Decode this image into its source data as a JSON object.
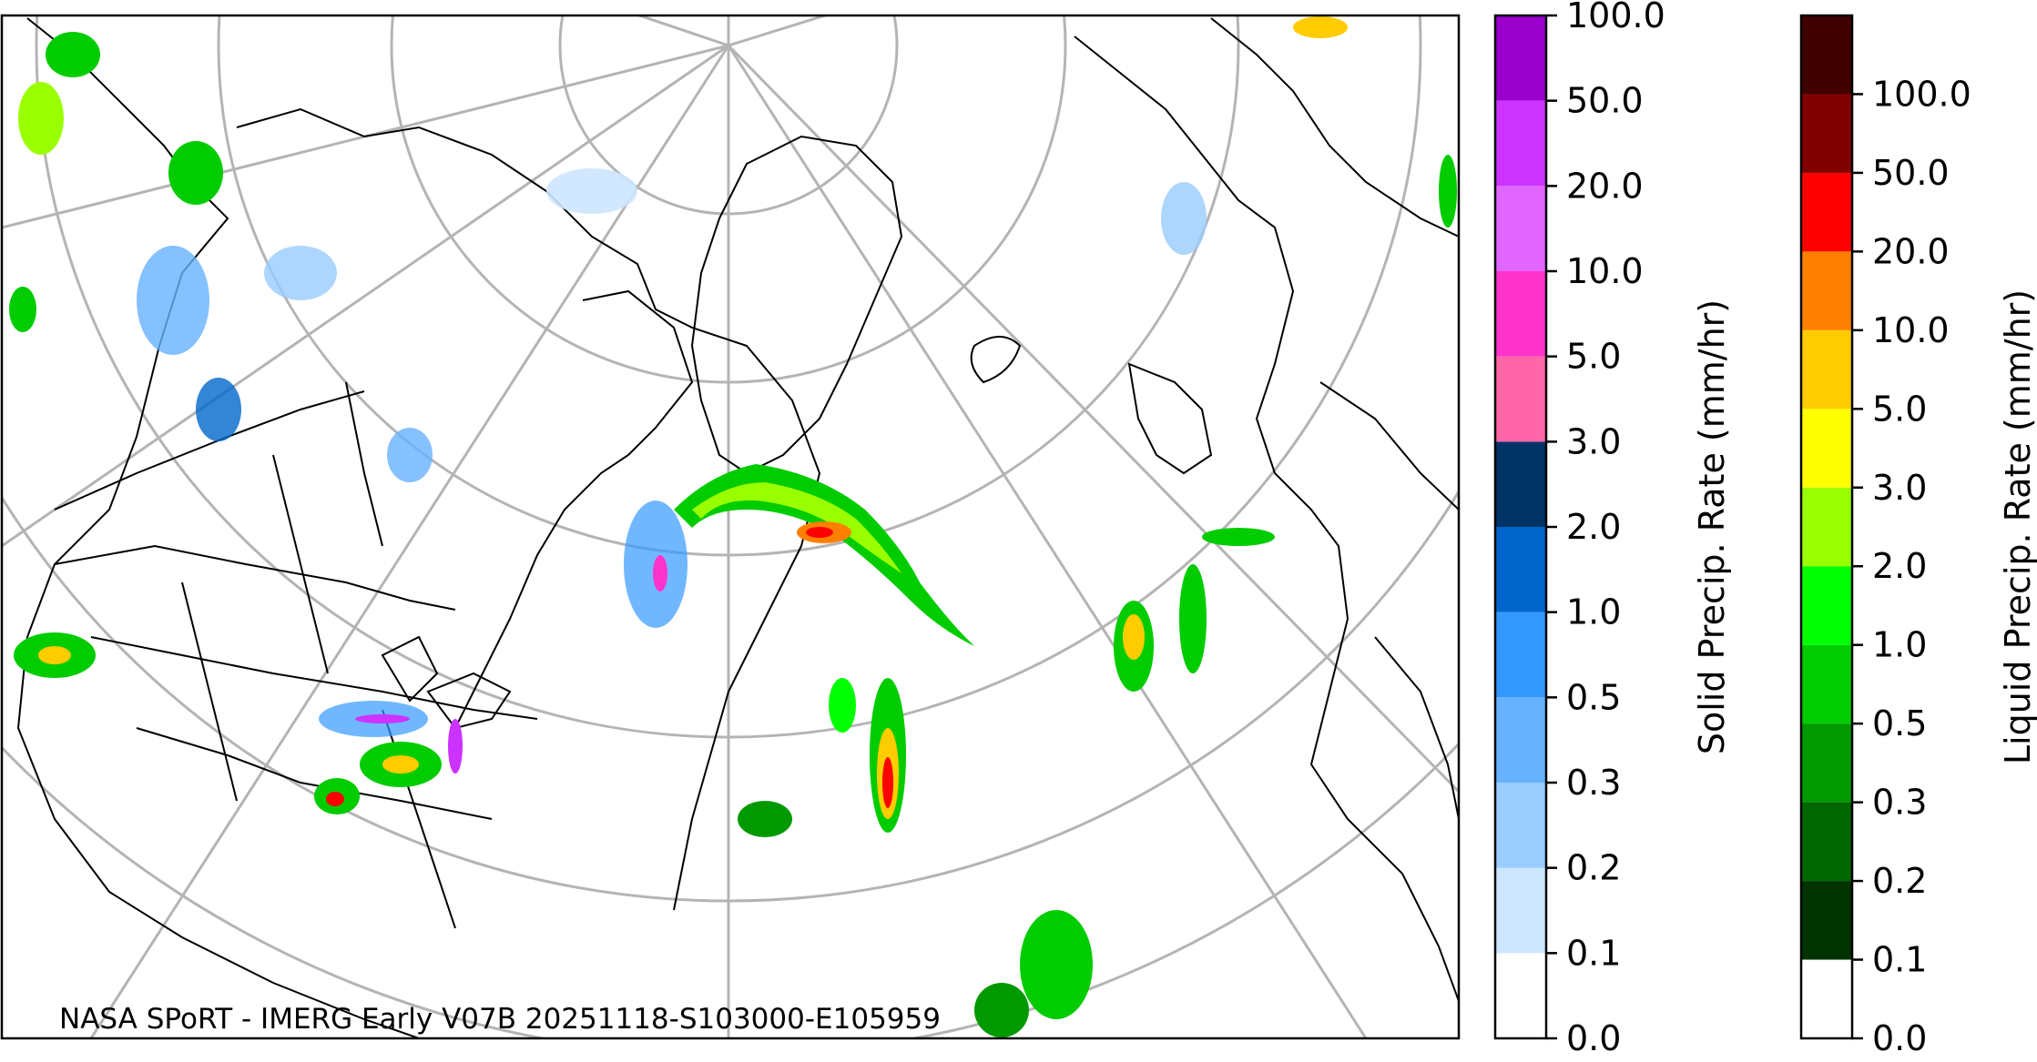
{
  "credit": "NASA SPoRT - IMERG Early V07B 20251118-S103000-E105959",
  "colors": {
    "coast": "#000000",
    "graticule": "#b4b4b4"
  },
  "solid_colorbar": {
    "label": "Solid Precip. Rate (mm/hr)",
    "ticks": [
      "0.0",
      "0.1",
      "0.2",
      "0.3",
      "0.5",
      "1.0",
      "2.0",
      "3.0",
      "5.0",
      "10.0",
      "20.0",
      "50.0",
      "100.0"
    ],
    "colors": [
      "#ffffff",
      "#cce6ff",
      "#99ccff",
      "#66b2ff",
      "#3399ff",
      "#0066cc",
      "#003366",
      "#ff66a8",
      "#ff33cc",
      "#e066ff",
      "#cc33ff",
      "#9900cc"
    ]
  },
  "liquid_colorbar": {
    "label": "Liquid Precip. Rate (mm/hr)",
    "ticks": [
      "0.0",
      "0.1",
      "0.2",
      "0.3",
      "0.5",
      "1.0",
      "2.0",
      "3.0",
      "5.0",
      "10.0",
      "20.0",
      "50.0",
      "100.0"
    ],
    "colors": [
      "#ffffff",
      "#003300",
      "#006600",
      "#009900",
      "#00cc00",
      "#00ff00",
      "#99ff00",
      "#ffff00",
      "#ffcc00",
      "#ff8000",
      "#ff0000",
      "#800000",
      "#400000"
    ]
  }
}
